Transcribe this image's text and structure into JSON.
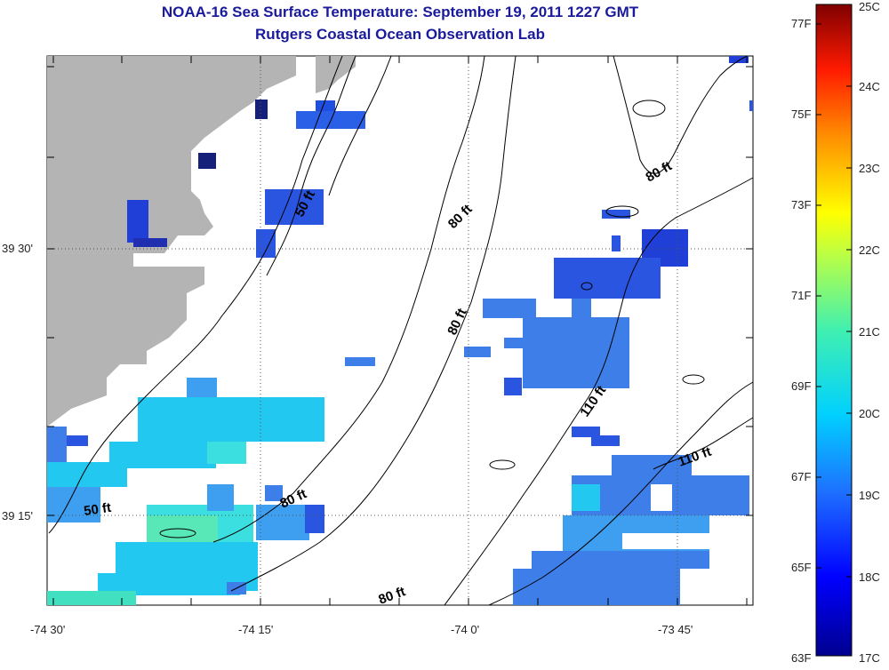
{
  "title": "NOAA-16 Sea Surface Temperature:  September 19, 2011 1227 GMT",
  "subtitle": "Rutgers Coastal Ocean Observation Lab",
  "axes": {
    "x_ticks": [
      "-74 30'",
      "-74 15'",
      "-74 0'",
      "-73 45'"
    ],
    "y_ticks": [
      "39 30'",
      "39 15'"
    ]
  },
  "depth_labels": [
    "50 ft",
    "80 ft",
    "80 ft",
    "80 ft",
    "110 ft",
    "110 ft",
    "50 ft",
    "80 ft",
    "80 ft"
  ],
  "colorbar": {
    "fahrenheit": [
      "77F",
      "75F",
      "73F",
      "71F",
      "69F",
      "67F",
      "65F",
      "63F"
    ],
    "celsius": [
      "25C",
      "24C",
      "23C",
      "22C",
      "21C",
      "20C",
      "19C",
      "18C",
      "17C"
    ]
  },
  "colors": {
    "land": "#b4b4b4",
    "title": "#1a1a9c",
    "deep_blue": "#1f3fd6",
    "mid_blue": "#3e7ee8",
    "cyan": "#22c8f0"
  }
}
